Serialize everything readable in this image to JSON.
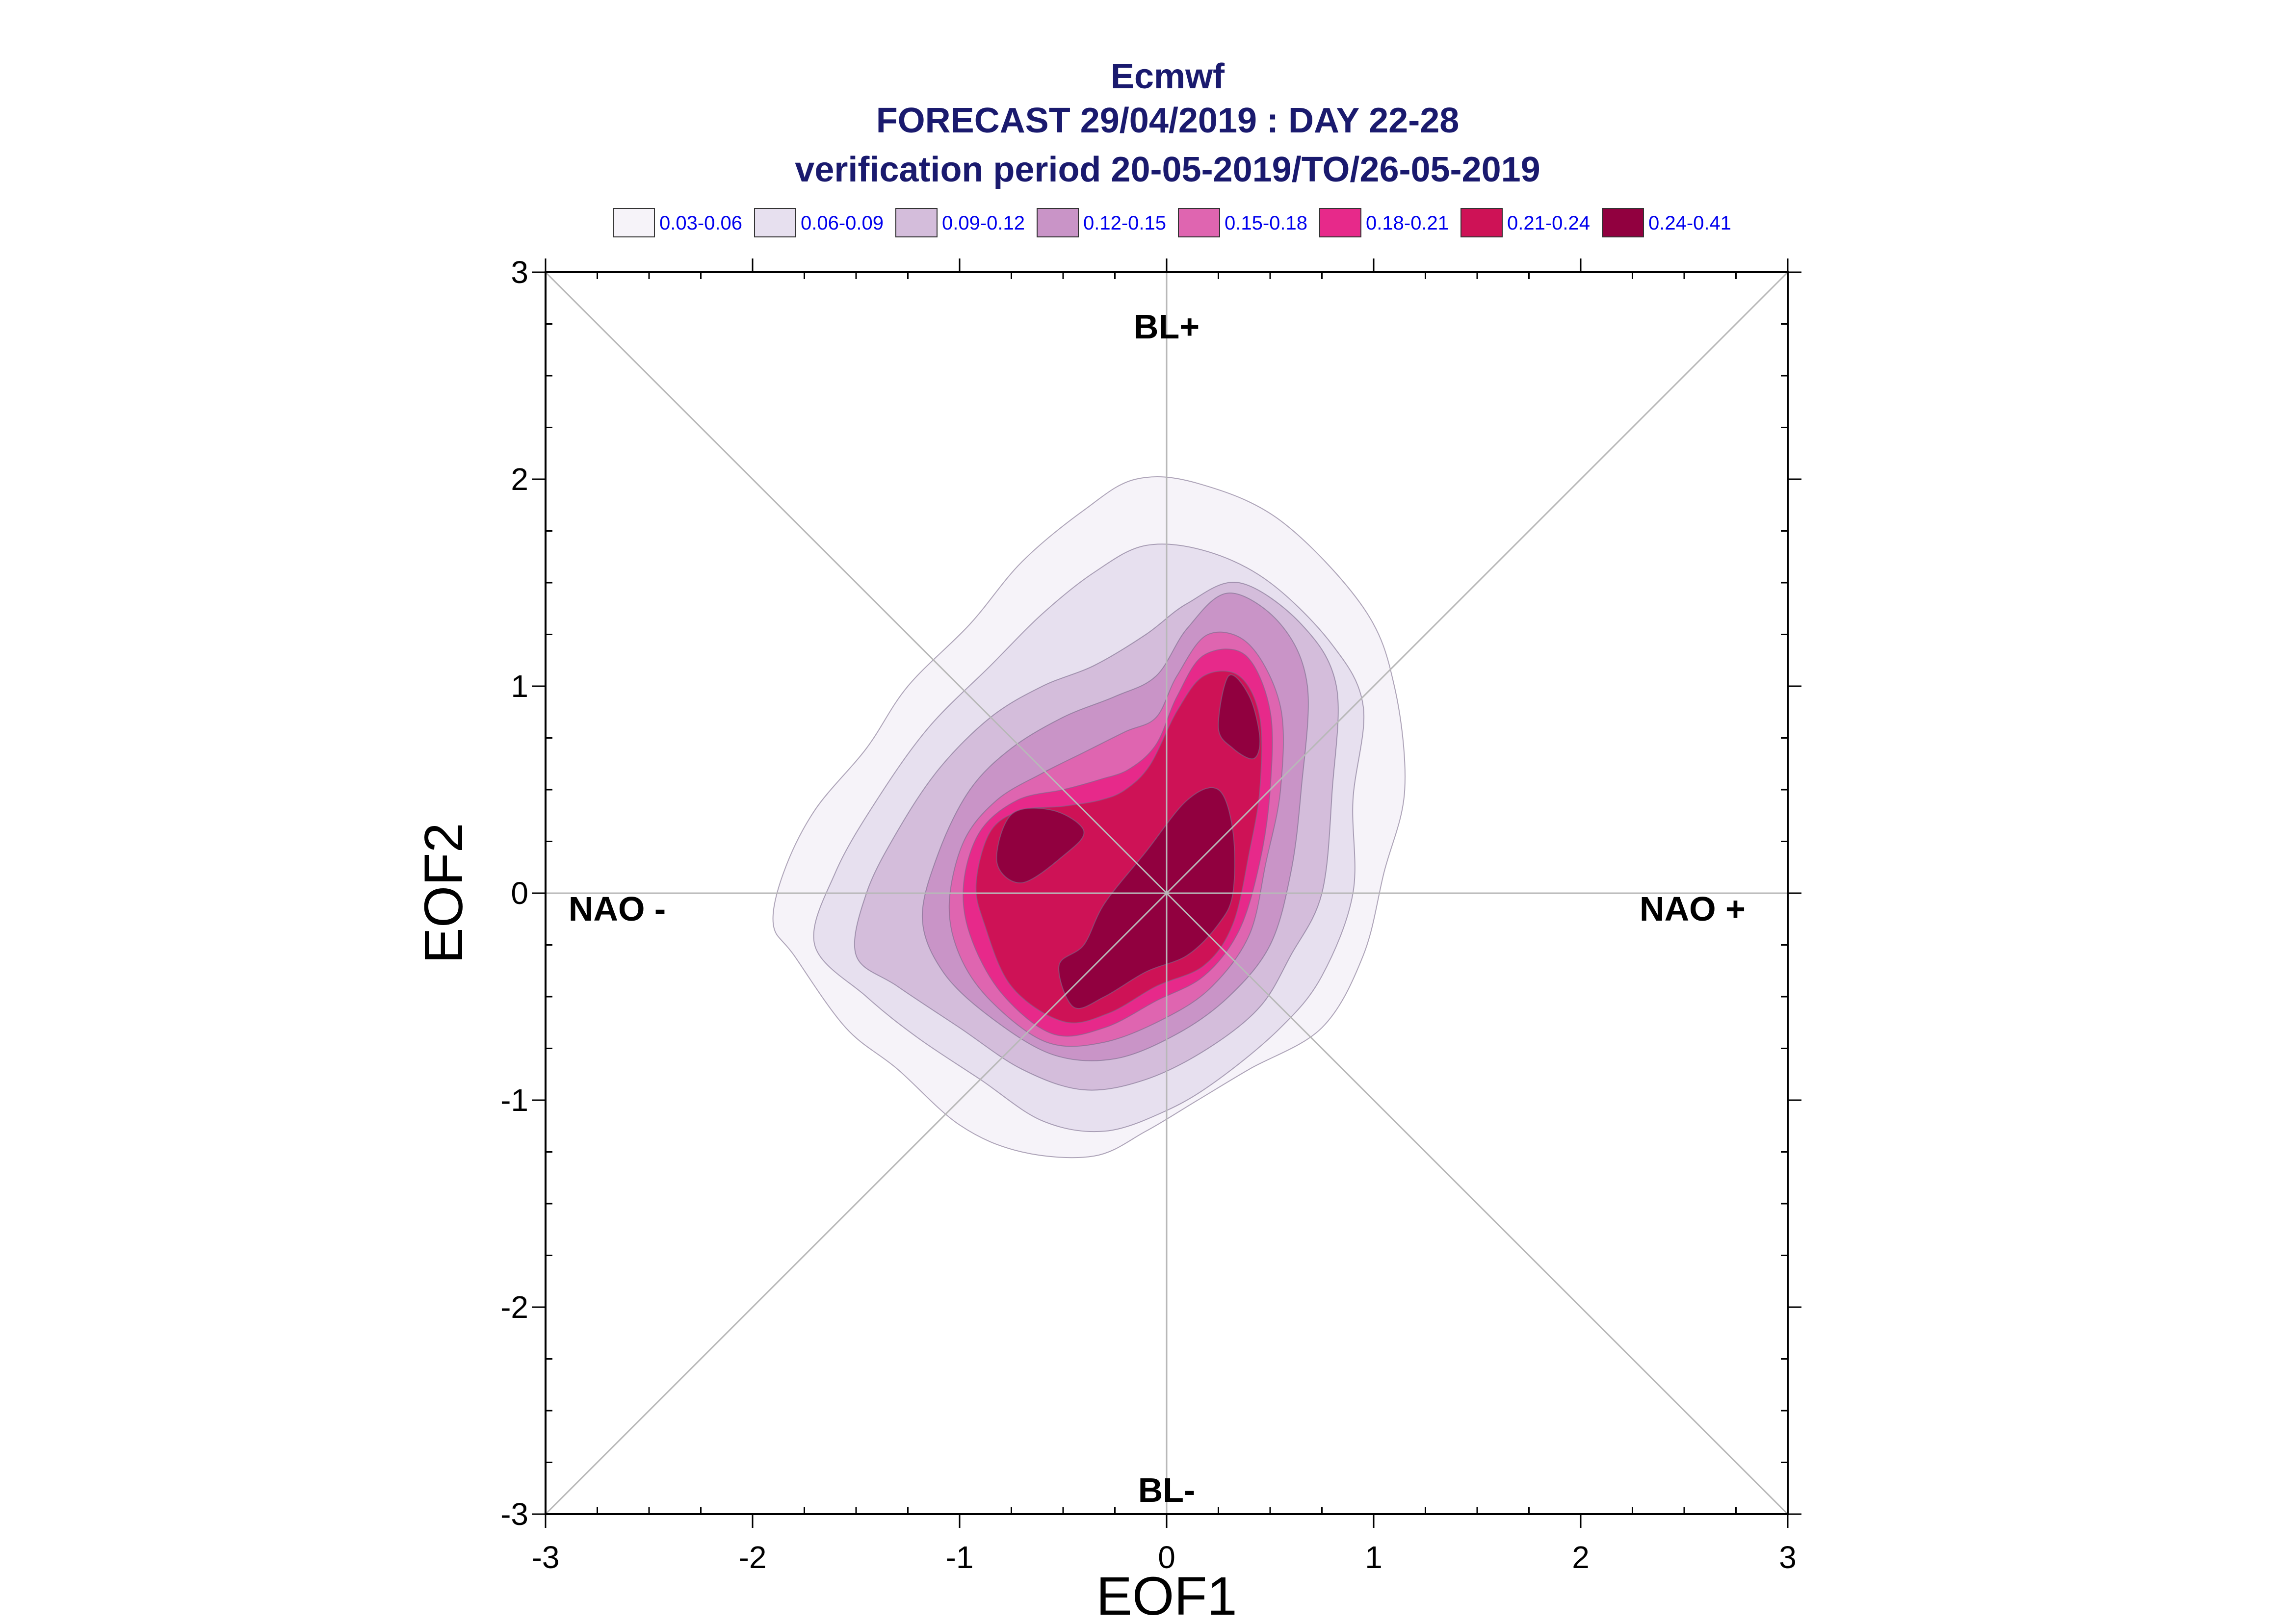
{
  "chart_data": {
    "type": "contour",
    "title_lines": [
      "Ecmwf",
      "FORECAST 29/04/2019 : DAY 22-28",
      "verification period 20-05-2019/TO/26-05-2019"
    ],
    "xlabel": "EOF1",
    "ylabel": "EOF2",
    "xlim": [
      -3,
      3
    ],
    "ylim": [
      -3,
      3
    ],
    "x_ticks": [
      "-3",
      "-2",
      "-1",
      "0",
      "1",
      "2",
      "3"
    ],
    "y_ticks": [
      "-3",
      "-2",
      "-1",
      "0",
      "1",
      "2",
      "3"
    ],
    "regime_labels": {
      "top": "BL+",
      "bottom": "BL-",
      "left": "NAO -",
      "right": "NAO +"
    },
    "legend": [
      {
        "label": "0.03-0.06",
        "color": "#f6f3f9"
      },
      {
        "label": "0.06-0.09",
        "color": "#e7e0ef"
      },
      {
        "label": "0.09-0.12",
        "color": "#d4bddb"
      },
      {
        "label": "0.12-0.15",
        "color": "#c994c7"
      },
      {
        "label": "0.15-0.18",
        "color": "#df65b0"
      },
      {
        "label": "0.18-0.21",
        "color": "#e7298a"
      },
      {
        "label": "0.21-0.24",
        "color": "#ce1256"
      },
      {
        "label": "0.24-0.41",
        "color": "#91003f"
      }
    ],
    "contours": [
      {
        "level": "0.03-0.06",
        "points": [
          [
            -1.8,
            -0.3
          ],
          [
            -1.9,
            -0.15
          ],
          [
            -1.85,
            0.1
          ],
          [
            -1.7,
            0.4
          ],
          [
            -1.45,
            0.7
          ],
          [
            -1.25,
            1.0
          ],
          [
            -0.95,
            1.3
          ],
          [
            -0.7,
            1.6
          ],
          [
            -0.4,
            1.85
          ],
          [
            -0.15,
            2.0
          ],
          [
            0.15,
            1.98
          ],
          [
            0.55,
            1.8
          ],
          [
            0.95,
            1.38
          ],
          [
            1.1,
            1.0
          ],
          [
            1.15,
            0.5
          ],
          [
            1.05,
            0.1
          ],
          [
            0.95,
            -0.3
          ],
          [
            0.75,
            -0.65
          ],
          [
            0.4,
            -0.85
          ],
          [
            0.15,
            -1.0
          ],
          [
            -0.1,
            -1.15
          ],
          [
            -0.35,
            -1.27
          ],
          [
            -0.7,
            -1.25
          ],
          [
            -1.0,
            -1.12
          ],
          [
            -1.3,
            -0.85
          ],
          [
            -1.55,
            -0.65
          ]
        ]
      },
      {
        "level": "0.06-0.09",
        "points": [
          [
            -1.7,
            -0.25
          ],
          [
            -1.6,
            0.1
          ],
          [
            -1.4,
            0.45
          ],
          [
            -1.15,
            0.8
          ],
          [
            -0.85,
            1.1
          ],
          [
            -0.6,
            1.35
          ],
          [
            -0.35,
            1.55
          ],
          [
            -0.1,
            1.68
          ],
          [
            0.2,
            1.65
          ],
          [
            0.5,
            1.5
          ],
          [
            0.8,
            1.2
          ],
          [
            0.95,
            0.9
          ],
          [
            0.9,
            0.45
          ],
          [
            0.9,
            0.0
          ],
          [
            0.75,
            -0.4
          ],
          [
            0.55,
            -0.65
          ],
          [
            0.25,
            -0.9
          ],
          [
            0.0,
            -1.05
          ],
          [
            -0.3,
            -1.15
          ],
          [
            -0.6,
            -1.1
          ],
          [
            -0.9,
            -0.9
          ],
          [
            -1.2,
            -0.7
          ],
          [
            -1.45,
            -0.5
          ]
        ]
      },
      {
        "level": "0.09-0.12",
        "points": [
          [
            -1.5,
            -0.3
          ],
          [
            -1.45,
            0.0
          ],
          [
            -1.3,
            0.3
          ],
          [
            -1.1,
            0.6
          ],
          [
            -0.85,
            0.85
          ],
          [
            -0.6,
            1.0
          ],
          [
            -0.35,
            1.1
          ],
          [
            -0.1,
            1.25
          ],
          [
            0.1,
            1.4
          ],
          [
            0.35,
            1.5
          ],
          [
            0.65,
            1.3
          ],
          [
            0.82,
            1.0
          ],
          [
            0.8,
            0.5
          ],
          [
            0.75,
            0.0
          ],
          [
            0.6,
            -0.3
          ],
          [
            0.45,
            -0.55
          ],
          [
            0.2,
            -0.75
          ],
          [
            -0.1,
            -0.9
          ],
          [
            -0.4,
            -0.95
          ],
          [
            -0.7,
            -0.85
          ],
          [
            -1.0,
            -0.65
          ],
          [
            -1.3,
            -0.45
          ]
        ]
      },
      {
        "level": "0.12-0.15",
        "points": [
          [
            -1.18,
            -0.12
          ],
          [
            -1.1,
            0.2
          ],
          [
            -0.95,
            0.5
          ],
          [
            -0.75,
            0.7
          ],
          [
            -0.5,
            0.85
          ],
          [
            -0.25,
            0.95
          ],
          [
            -0.05,
            1.05
          ],
          [
            0.1,
            1.28
          ],
          [
            0.3,
            1.45
          ],
          [
            0.55,
            1.3
          ],
          [
            0.68,
            1.0
          ],
          [
            0.65,
            0.5
          ],
          [
            0.6,
            0.1
          ],
          [
            0.5,
            -0.25
          ],
          [
            0.3,
            -0.5
          ],
          [
            0.05,
            -0.68
          ],
          [
            -0.25,
            -0.8
          ],
          [
            -0.55,
            -0.78
          ],
          [
            -0.85,
            -0.6
          ],
          [
            -1.08,
            -0.38
          ]
        ]
      },
      {
        "level": "0.15-0.18",
        "points": [
          [
            -1.05,
            -0.05
          ],
          [
            -0.98,
            0.25
          ],
          [
            -0.82,
            0.45
          ],
          [
            -0.6,
            0.58
          ],
          [
            -0.4,
            0.68
          ],
          [
            -0.2,
            0.78
          ],
          [
            -0.05,
            0.85
          ],
          [
            0.05,
            1.05
          ],
          [
            0.2,
            1.25
          ],
          [
            0.4,
            1.2
          ],
          [
            0.55,
            0.9
          ],
          [
            0.55,
            0.5
          ],
          [
            0.48,
            0.15
          ],
          [
            0.4,
            -0.2
          ],
          [
            0.22,
            -0.45
          ],
          [
            0.0,
            -0.6
          ],
          [
            -0.3,
            -0.72
          ],
          [
            -0.58,
            -0.72
          ],
          [
            -0.85,
            -0.52
          ],
          [
            -1.0,
            -0.3
          ]
        ]
      },
      {
        "level": "0.18-0.21",
        "points": [
          [
            -0.98,
            0.05
          ],
          [
            -0.9,
            0.3
          ],
          [
            -0.72,
            0.45
          ],
          [
            -0.5,
            0.5
          ],
          [
            -0.32,
            0.55
          ],
          [
            -0.18,
            0.6
          ],
          [
            -0.05,
            0.72
          ],
          [
            0.05,
            0.95
          ],
          [
            0.18,
            1.15
          ],
          [
            0.38,
            1.15
          ],
          [
            0.5,
            0.88
          ],
          [
            0.5,
            0.5
          ],
          [
            0.45,
            0.15
          ],
          [
            0.35,
            -0.18
          ],
          [
            0.18,
            -0.4
          ],
          [
            -0.05,
            -0.52
          ],
          [
            -0.3,
            -0.65
          ],
          [
            -0.55,
            -0.68
          ],
          [
            -0.8,
            -0.48
          ],
          [
            -0.95,
            -0.2
          ]
        ]
      },
      {
        "level": "0.21-0.24",
        "points": [
          [
            -0.92,
            0.05
          ],
          [
            -0.85,
            0.3
          ],
          [
            -0.7,
            0.4
          ],
          [
            -0.5,
            0.42
          ],
          [
            -0.32,
            0.45
          ],
          [
            -0.2,
            0.5
          ],
          [
            -0.08,
            0.62
          ],
          [
            0.05,
            0.88
          ],
          [
            0.18,
            1.05
          ],
          [
            0.35,
            1.05
          ],
          [
            0.45,
            0.85
          ],
          [
            0.45,
            0.5
          ],
          [
            0.4,
            0.2
          ],
          [
            0.32,
            -0.15
          ],
          [
            0.18,
            -0.35
          ],
          [
            -0.05,
            -0.45
          ],
          [
            -0.28,
            -0.58
          ],
          [
            -0.5,
            -0.62
          ],
          [
            -0.75,
            -0.45
          ],
          [
            -0.88,
            -0.15
          ]
        ]
      },
      {
        "level": "0.24-0.41",
        "points": [
          [
            -0.82,
            0.15
          ],
          [
            -0.75,
            0.38
          ],
          [
            -0.55,
            0.4
          ],
          [
            -0.4,
            0.3
          ],
          [
            -0.5,
            0.18
          ],
          [
            -0.7,
            0.05
          ]
        ]
      },
      {
        "level": "0.24-0.41",
        "points": [
          [
            -0.3,
            -0.05
          ],
          [
            -0.1,
            0.2
          ],
          [
            0.1,
            0.45
          ],
          [
            0.25,
            0.5
          ],
          [
            0.32,
            0.3
          ],
          [
            0.32,
            0.0
          ],
          [
            0.25,
            -0.15
          ],
          [
            0.1,
            -0.3
          ],
          [
            -0.1,
            -0.38
          ],
          [
            -0.3,
            -0.5
          ],
          [
            -0.45,
            -0.55
          ],
          [
            -0.52,
            -0.35
          ],
          [
            -0.4,
            -0.25
          ]
        ]
      },
      {
        "level": "0.24-0.41",
        "points": [
          [
            0.25,
            0.8
          ],
          [
            0.3,
            1.05
          ],
          [
            0.4,
            0.95
          ],
          [
            0.45,
            0.75
          ],
          [
            0.42,
            0.65
          ],
          [
            0.32,
            0.7
          ]
        ]
      }
    ]
  }
}
